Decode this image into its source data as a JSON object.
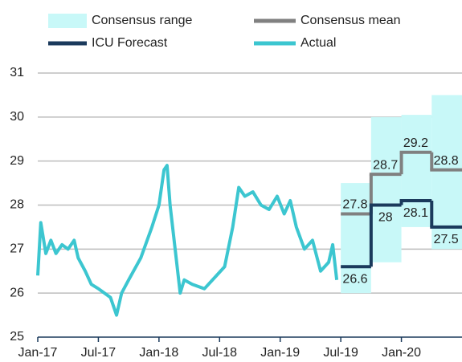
{
  "chart_data": {
    "type": "line",
    "legend": [
      "Consensus range",
      "Consensus mean",
      "ICU Forecast",
      "Actual"
    ],
    "xlim": [
      0,
      42
    ],
    "xticks": [
      {
        "value": 0,
        "label": "Jan-17"
      },
      {
        "value": 6,
        "label": "Jul-17"
      },
      {
        "value": 12,
        "label": "Jan-18"
      },
      {
        "value": 18,
        "label": "Jul-18"
      },
      {
        "value": 24,
        "label": "Jan-19"
      },
      {
        "value": 30,
        "label": "Jul-19"
      },
      {
        "value": 36,
        "label": "Jan-20"
      }
    ],
    "ylim": [
      25,
      31
    ],
    "yticks": [
      25,
      26,
      27,
      28,
      29,
      30,
      31
    ],
    "grid": true,
    "range": {
      "name": "Consensus range",
      "color": "#c8f8f8",
      "x": [
        30,
        33,
        36,
        39
      ],
      "low": [
        26.0,
        26.7,
        27.5,
        27.0
      ],
      "high": [
        28.5,
        30.0,
        30.05,
        30.5
      ]
    },
    "steps": [
      {
        "name": "Consensus mean",
        "color": "#808080",
        "x": [
          30,
          33,
          36,
          39
        ],
        "values": [
          27.8,
          28.7,
          29.2,
          28.8
        ]
      },
      {
        "name": "ICU Forecast",
        "color": "#1b3a5c",
        "x": [
          30,
          33,
          36,
          39
        ],
        "values": [
          26.6,
          28.0,
          28.1,
          27.5
        ]
      }
    ],
    "series": [
      {
        "name": "Actual",
        "color": "#3cc6d0",
        "x": [
          0,
          0.3,
          0.8,
          1.3,
          1.8,
          2.4,
          3,
          3.6,
          4,
          4.7,
          5.3,
          6,
          6.6,
          7.2,
          7.8,
          8.3,
          9,
          10.2,
          11.3,
          12,
          12.5,
          12.8,
          13.1,
          13.6,
          14.1,
          14.5,
          15.3,
          16.5,
          17.7,
          18.5,
          19.3,
          19.9,
          20.5,
          21.3,
          22.1,
          22.9,
          23.7,
          24.4,
          25,
          25.6,
          26.4,
          27.2,
          28,
          28.8,
          29.2,
          29.6
        ],
        "values": [
          26.4,
          27.6,
          26.9,
          27.2,
          26.9,
          27.1,
          27.0,
          27.2,
          26.8,
          26.5,
          26.2,
          26.1,
          26.0,
          25.9,
          25.5,
          26.0,
          26.3,
          26.8,
          27.5,
          28.0,
          28.8,
          28.9,
          28.0,
          27.0,
          26.0,
          26.3,
          26.2,
          26.1,
          26.4,
          26.6,
          27.5,
          28.4,
          28.2,
          28.3,
          28.0,
          27.9,
          28.2,
          27.8,
          28.1,
          27.5,
          27.0,
          27.2,
          26.5,
          26.7,
          27.1,
          26.3
        ]
      }
    ]
  }
}
